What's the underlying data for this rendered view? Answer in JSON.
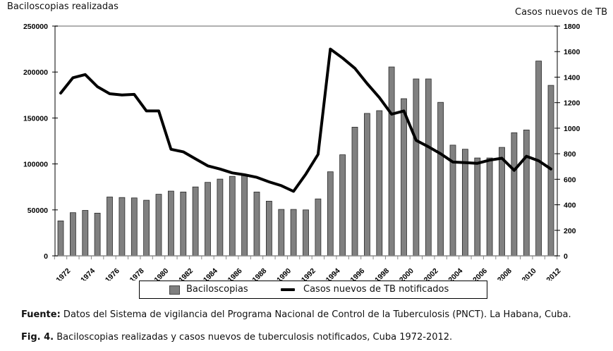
{
  "chart_data": {
    "type": "bar+line",
    "title": "",
    "left_axis_title": "Baciloscopias realizadas",
    "right_axis_title": "Casos nuevos de TB",
    "left_ylim": [
      0,
      250000
    ],
    "left_yticks": [
      0,
      50000,
      100000,
      150000,
      200000,
      250000
    ],
    "right_ylim": [
      0,
      1800
    ],
    "right_yticks": [
      0,
      200,
      400,
      600,
      800,
      1000,
      1200,
      1400,
      1600,
      1800
    ],
    "x_tick_labels": [
      "1972",
      "1974",
      "1976",
      "1978",
      "1980",
      "1982",
      "1984",
      "1986",
      "1988",
      "1990",
      "1992",
      "1994",
      "1996",
      "1998",
      "2000",
      "2002",
      "2004",
      "2006",
      "2008",
      "2010",
      "2012"
    ],
    "categories": [
      1972,
      1973,
      1974,
      1975,
      1976,
      1977,
      1978,
      1979,
      1980,
      1981,
      1982,
      1983,
      1984,
      1985,
      1986,
      1987,
      1988,
      1989,
      1990,
      1991,
      1992,
      1993,
      1994,
      1995,
      1996,
      1997,
      1998,
      1999,
      2000,
      2001,
      2002,
      2003,
      2004,
      2005,
      2006,
      2007,
      2008,
      2009,
      2010,
      2011,
      2012
    ],
    "series": [
      {
        "name": "Baciloscopias",
        "type": "bar",
        "axis": "left",
        "color": "#808080",
        "values": [
          38000,
          47000,
          49500,
          46500,
          64000,
          63500,
          63000,
          60500,
          67000,
          70500,
          69500,
          75000,
          80000,
          83500,
          86500,
          87500,
          69500,
          59500,
          50500,
          50500,
          50000,
          62000,
          91500,
          110000,
          140000,
          155000,
          158000,
          205500,
          171000,
          192500,
          192500,
          167000,
          120500,
          116000,
          106500,
          106500,
          118000,
          134000,
          137000,
          212000,
          185500
        ]
      },
      {
        "name": "Casos nuevos de TB notificados",
        "type": "line",
        "axis": "right",
        "color": "#000000",
        "values": [
          1275,
          1395,
          1420,
          1325,
          1270,
          1260,
          1265,
          1135,
          1135,
          835,
          815,
          760,
          705,
          680,
          650,
          635,
          615,
          580,
          550,
          505,
          640,
          795,
          1620,
          1550,
          1470,
          1350,
          1240,
          1110,
          1135,
          905,
          855,
          800,
          735,
          730,
          725,
          750,
          765,
          670,
          780,
          745,
          680
        ]
      }
    ],
    "legend": {
      "placement": "bottom",
      "entries": [
        "Baciloscopias",
        "Casos nuevos de TB notificados"
      ]
    },
    "grid": false
  },
  "captions": {
    "source_label": "Fuente:",
    "source_text": " Datos del Sistema de vigilancia del Programa Nacional de Control de la Tuberculosis (PNCT). La Habana, Cuba.",
    "figure_label": "Fig. 4.",
    "figure_text": " Baciloscopias realizadas y casos nuevos de tuberculosis notificados, Cuba 1972-2012."
  }
}
